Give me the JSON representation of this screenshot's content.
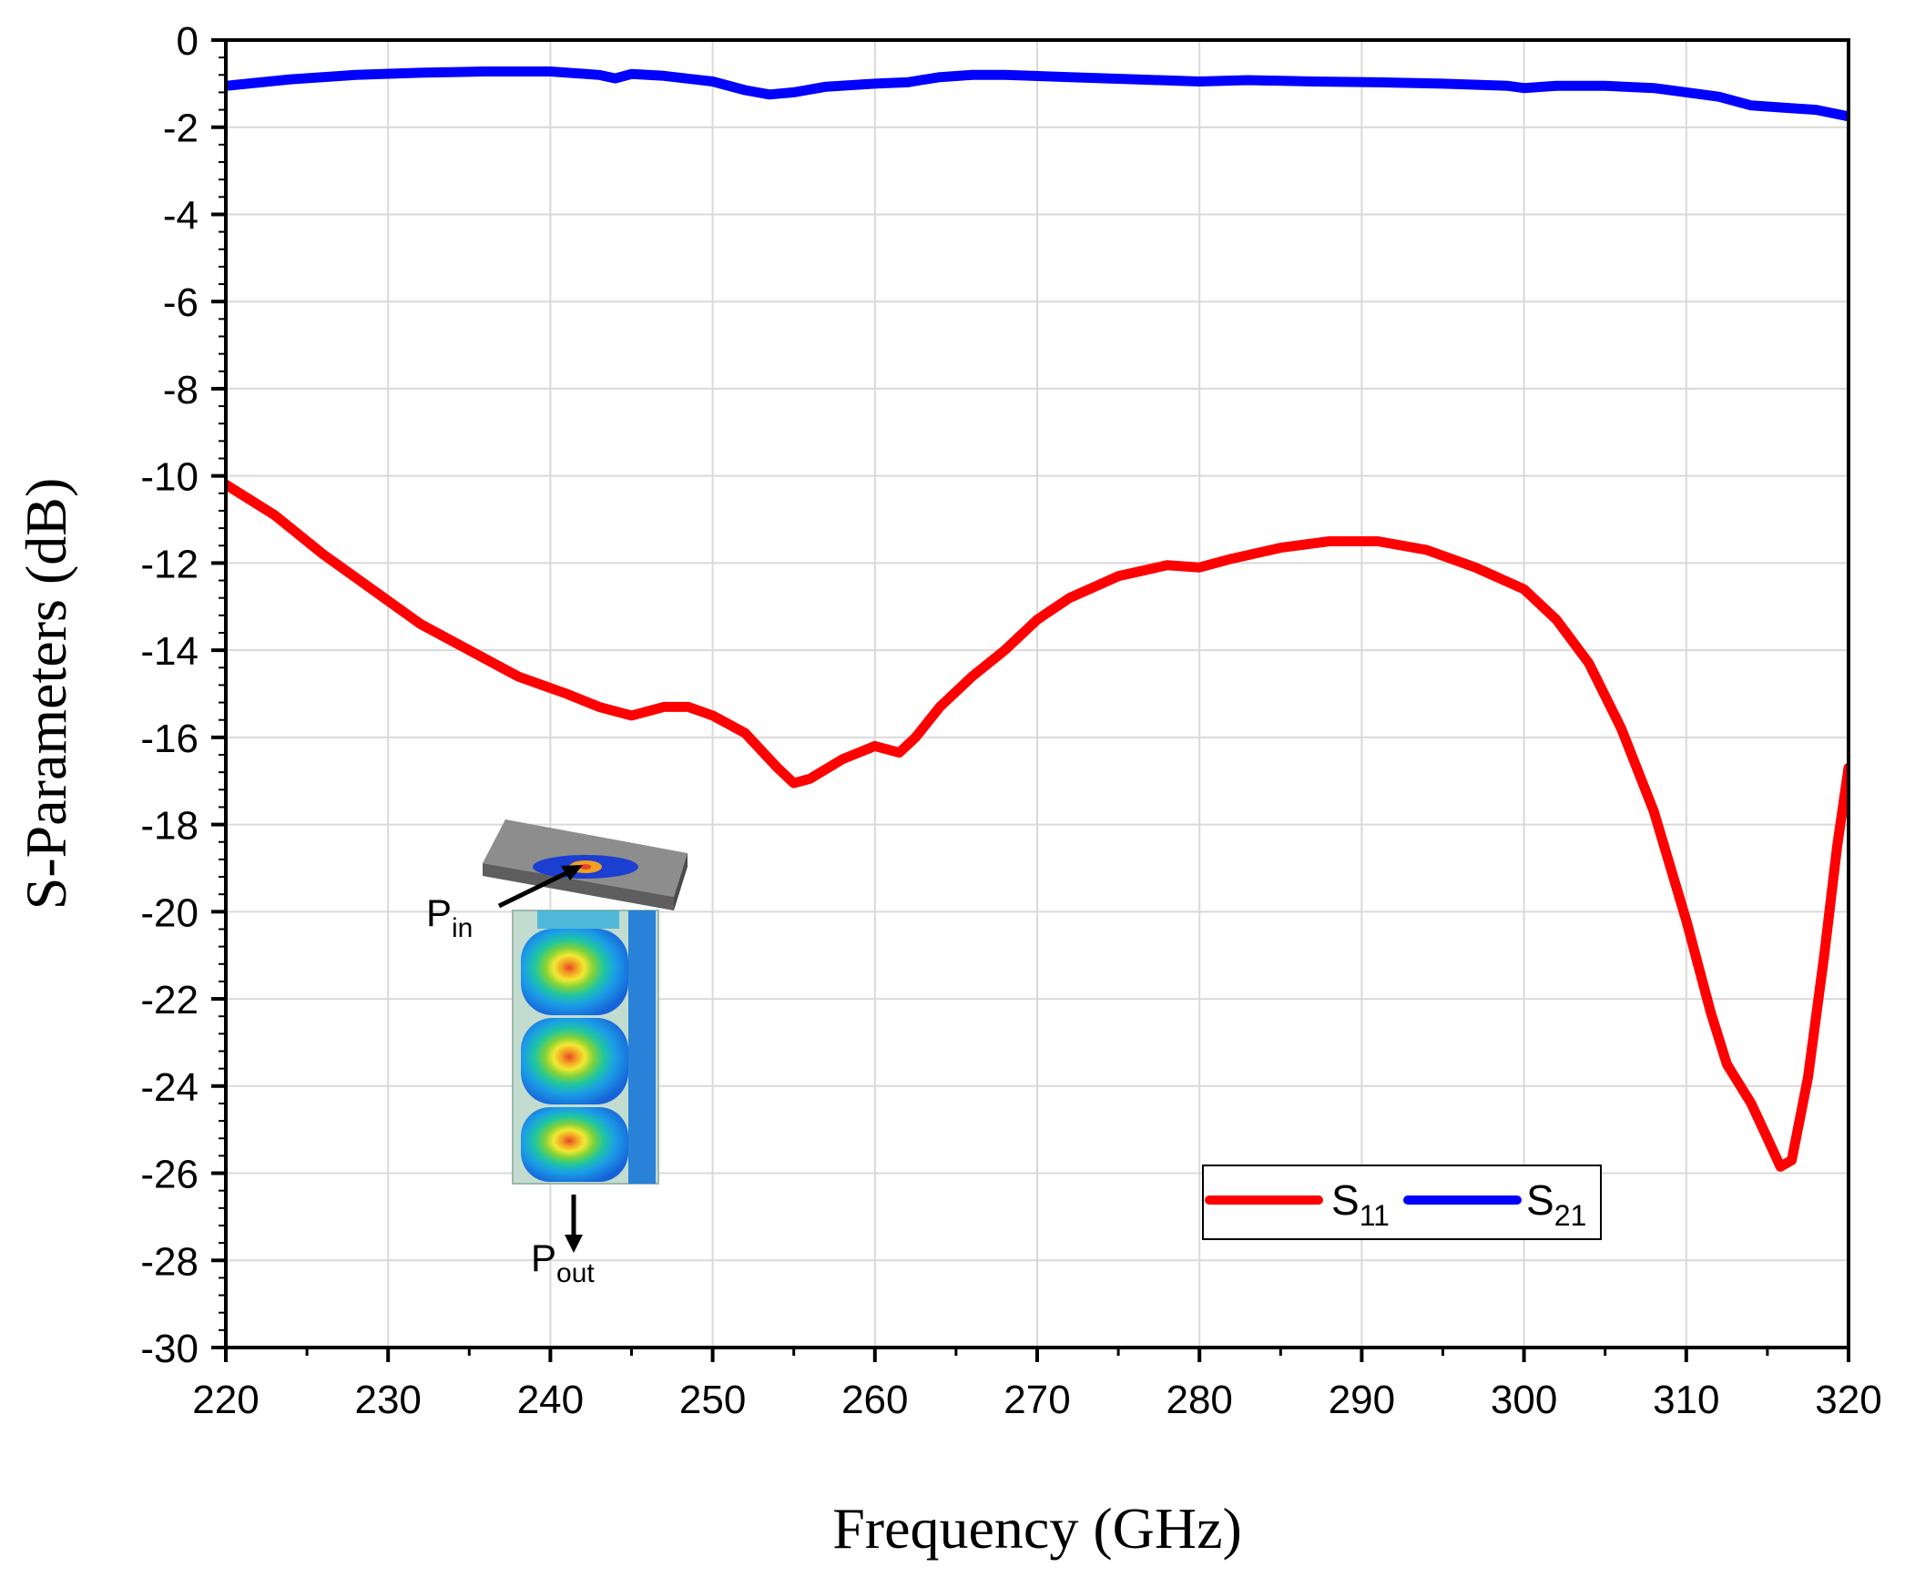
{
  "chart_data": {
    "type": "line",
    "xlabel": "Frequency (GHz)",
    "ylabel": "S-Parameters (dB)",
    "xlim": [
      220,
      320
    ],
    "ylim": [
      -30,
      0
    ],
    "x_ticks": [
      220,
      230,
      240,
      250,
      260,
      270,
      280,
      290,
      300,
      310,
      320
    ],
    "y_ticks": [
      0,
      -2,
      -4,
      -6,
      -8,
      -10,
      -12,
      -14,
      -16,
      -18,
      -20,
      -22,
      -24,
      -26,
      -28,
      -30
    ],
    "x_tick_labels": [
      "220",
      "230",
      "240",
      "250",
      "260",
      "270",
      "280",
      "290",
      "300",
      "310",
      "320"
    ],
    "y_tick_labels": [
      "0",
      "-2",
      "-4",
      "-6",
      "-8",
      "-10",
      "-12",
      "-14",
      "-16",
      "-18",
      "-20",
      "-22",
      "-24",
      "-26",
      "-28",
      "-30"
    ],
    "grid": true,
    "legend_position": "bottom-right",
    "series": [
      {
        "name": "S11",
        "label_main": "S",
        "label_sub": "11",
        "color": "#ff0000",
        "points": [
          [
            220,
            -10.2
          ],
          [
            223,
            -10.9
          ],
          [
            226,
            -11.8
          ],
          [
            229,
            -12.6
          ],
          [
            232,
            -13.4
          ],
          [
            235,
            -14.0
          ],
          [
            238,
            -14.6
          ],
          [
            241,
            -15.0
          ],
          [
            243,
            -15.3
          ],
          [
            245,
            -15.5
          ],
          [
            247,
            -15.3
          ],
          [
            248.5,
            -15.3
          ],
          [
            250,
            -15.5
          ],
          [
            252,
            -15.9
          ],
          [
            254,
            -16.7
          ],
          [
            255,
            -17.05
          ],
          [
            256,
            -16.95
          ],
          [
            258,
            -16.5
          ],
          [
            260,
            -16.2
          ],
          [
            261.5,
            -16.35
          ],
          [
            262.5,
            -16.0
          ],
          [
            264,
            -15.3
          ],
          [
            266,
            -14.6
          ],
          [
            268,
            -14.0
          ],
          [
            270,
            -13.3
          ],
          [
            272,
            -12.8
          ],
          [
            275,
            -12.3
          ],
          [
            278,
            -12.05
          ],
          [
            280,
            -12.1
          ],
          [
            282,
            -11.9
          ],
          [
            285,
            -11.65
          ],
          [
            288,
            -11.5
          ],
          [
            291,
            -11.5
          ],
          [
            294,
            -11.7
          ],
          [
            297,
            -12.1
          ],
          [
            300,
            -12.6
          ],
          [
            302,
            -13.3
          ],
          [
            304,
            -14.3
          ],
          [
            306,
            -15.8
          ],
          [
            308,
            -17.7
          ],
          [
            310,
            -20.2
          ],
          [
            311.5,
            -22.3
          ],
          [
            312.5,
            -23.5
          ],
          [
            314,
            -24.4
          ],
          [
            315,
            -25.2
          ],
          [
            315.8,
            -25.85
          ],
          [
            316.5,
            -25.7
          ],
          [
            317.5,
            -23.8
          ],
          [
            318.5,
            -21.0
          ],
          [
            319.3,
            -18.5
          ],
          [
            320,
            -16.7
          ]
        ]
      },
      {
        "name": "S21",
        "label_main": "S",
        "label_sub": "21",
        "color": "#0000ff",
        "points": [
          [
            220,
            -1.05
          ],
          [
            224,
            -0.9
          ],
          [
            228,
            -0.8
          ],
          [
            232,
            -0.75
          ],
          [
            236,
            -0.72
          ],
          [
            240,
            -0.72
          ],
          [
            243,
            -0.8
          ],
          [
            244,
            -0.88
          ],
          [
            245,
            -0.78
          ],
          [
            247,
            -0.82
          ],
          [
            250,
            -0.95
          ],
          [
            252,
            -1.15
          ],
          [
            253.5,
            -1.25
          ],
          [
            255,
            -1.2
          ],
          [
            257,
            -1.07
          ],
          [
            260,
            -1.0
          ],
          [
            262,
            -0.97
          ],
          [
            264,
            -0.85
          ],
          [
            266,
            -0.8
          ],
          [
            268,
            -0.8
          ],
          [
            272,
            -0.85
          ],
          [
            276,
            -0.9
          ],
          [
            280,
            -0.95
          ],
          [
            283,
            -0.92
          ],
          [
            287,
            -0.95
          ],
          [
            291,
            -0.97
          ],
          [
            295,
            -1.0
          ],
          [
            299,
            -1.05
          ],
          [
            300,
            -1.1
          ],
          [
            302,
            -1.05
          ],
          [
            305,
            -1.05
          ],
          [
            308,
            -1.1
          ],
          [
            310,
            -1.2
          ],
          [
            312,
            -1.3
          ],
          [
            314,
            -1.5
          ],
          [
            316,
            -1.55
          ],
          [
            318,
            -1.6
          ],
          [
            320,
            -1.75
          ]
        ]
      }
    ]
  },
  "inset": {
    "input_label_main": "P",
    "input_label_sub": "in",
    "output_label_main": "P",
    "output_label_sub": "out"
  }
}
